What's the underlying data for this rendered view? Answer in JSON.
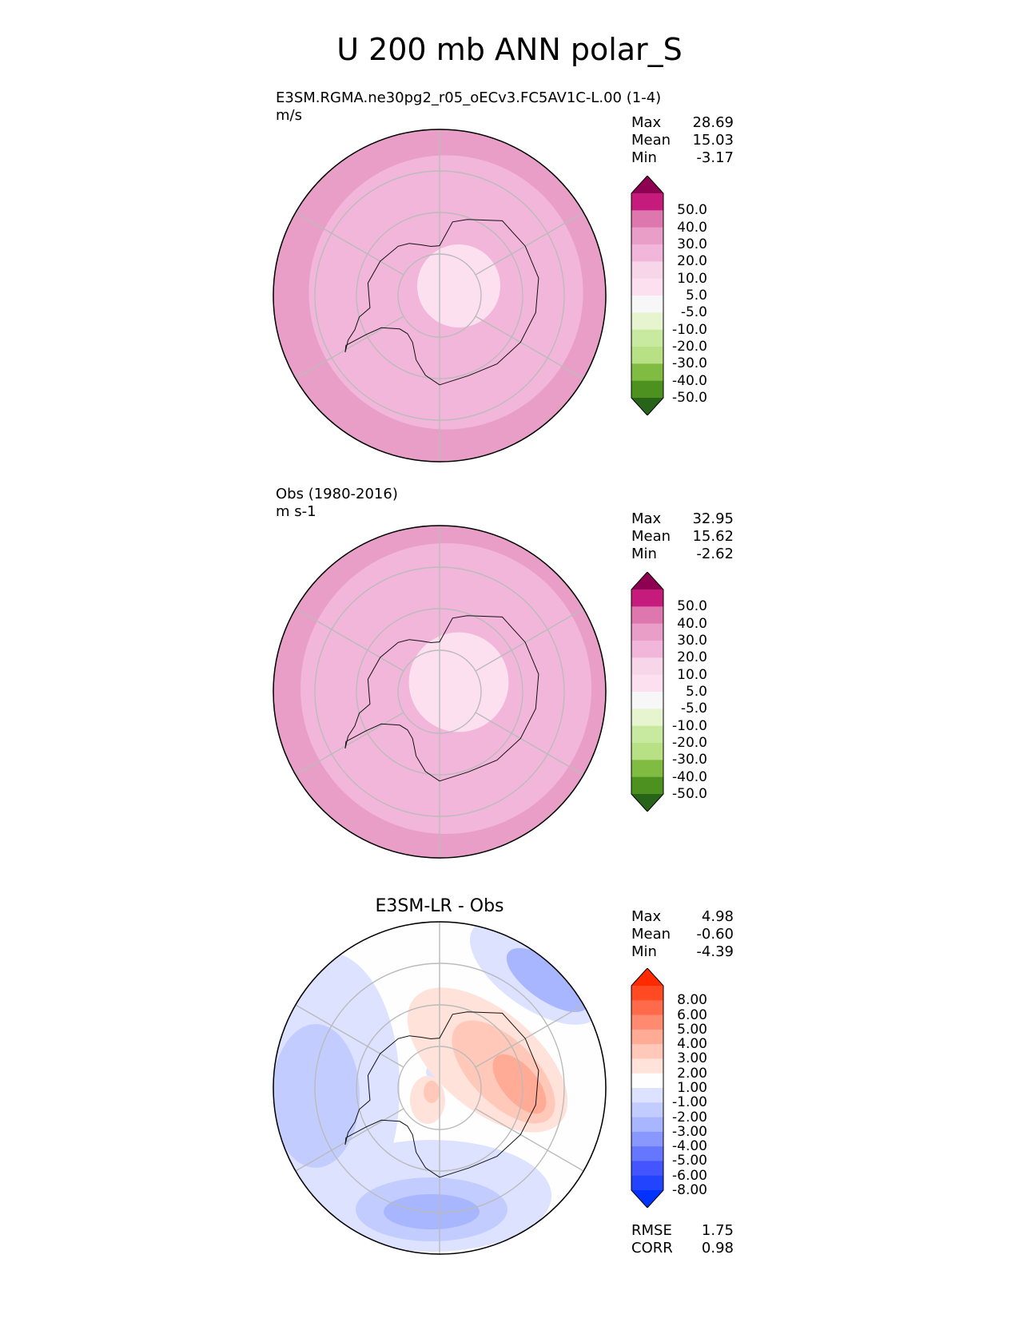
{
  "figure_title": "U 200 mb ANN polar_S",
  "chart_data": [
    {
      "type": "heatmap",
      "name": "test",
      "title": "E3SM.RGMA.ne30pg2_r05_oECv3.FC5AV1C-L.00 (1-4)",
      "units": "m/s",
      "projection": "south polar stereographic",
      "stats": {
        "max": "28.69",
        "mean": "15.03",
        "min": "-3.17"
      },
      "levels": [
        "50.0",
        "40.0",
        "30.0",
        "20.0",
        "10.0",
        "5.0",
        "-5.0",
        "-10.0",
        "-20.0",
        "-30.0",
        "-40.0",
        "-50.0"
      ],
      "field_bands": [
        {
          "lat": -50,
          "value": 25
        },
        {
          "lat": -57,
          "value": 18
        },
        {
          "lat": -71,
          "value": 10
        },
        {
          "lat": -80,
          "value": 3
        }
      ]
    },
    {
      "type": "heatmap",
      "name": "reference",
      "title": "Obs (1980-2016)",
      "units": "m s-1",
      "projection": "south polar stereographic",
      "stats": {
        "max": "32.95",
        "mean": "15.62",
        "min": "-2.62"
      },
      "levels": [
        "50.0",
        "40.0",
        "30.0",
        "20.0",
        "10.0",
        "5.0",
        "-5.0",
        "-10.0",
        "-20.0",
        "-30.0",
        "-40.0",
        "-50.0"
      ],
      "field_bands": [
        {
          "lat": -50,
          "value": 25
        },
        {
          "lat": -55,
          "value": 18
        },
        {
          "lat": -69,
          "value": 10
        },
        {
          "lat": -78,
          "value": 3
        }
      ]
    },
    {
      "type": "heatmap",
      "name": "difference",
      "title": "E3SM-LR - Obs",
      "projection": "south polar stereographic",
      "stats": {
        "max": "4.98",
        "mean": "-0.60",
        "min": "-4.39",
        "rmse": "1.75",
        "corr": "0.98"
      },
      "levels": [
        "8.00",
        "6.00",
        "5.00",
        "4.00",
        "3.00",
        "2.00",
        "1.00",
        "-1.00",
        "-2.00",
        "-3.00",
        "-4.00",
        "-5.00",
        "-6.00",
        "-8.00"
      ]
    }
  ],
  "labels": {
    "max": "Max",
    "mean": "Mean",
    "min": "Min",
    "rmse": "RMSE",
    "corr": "CORR"
  },
  "colors": {
    "pink_green": [
      "#8e0152",
      "#c51b7d",
      "#de77ae",
      "#e99ec8",
      "#f1b6da",
      "#f7d6e9",
      "#fde0ef",
      "#f7f7f7",
      "#e6f5d0",
      "#c7e9a0",
      "#b8e186",
      "#7fbc41",
      "#4d9221",
      "#276419"
    ],
    "red_blue": [
      "#ff2a00",
      "#ff4a24",
      "#ff6a4a",
      "#ff8a70",
      "#ffab96",
      "#ffc8b8",
      "#ffe2da",
      "#fefefe",
      "#dce2ff",
      "#c3ccff",
      "#a8b6ff",
      "#8898ff",
      "#6677ff",
      "#4455ff",
      "#2244ff",
      "#0033ff"
    ]
  }
}
